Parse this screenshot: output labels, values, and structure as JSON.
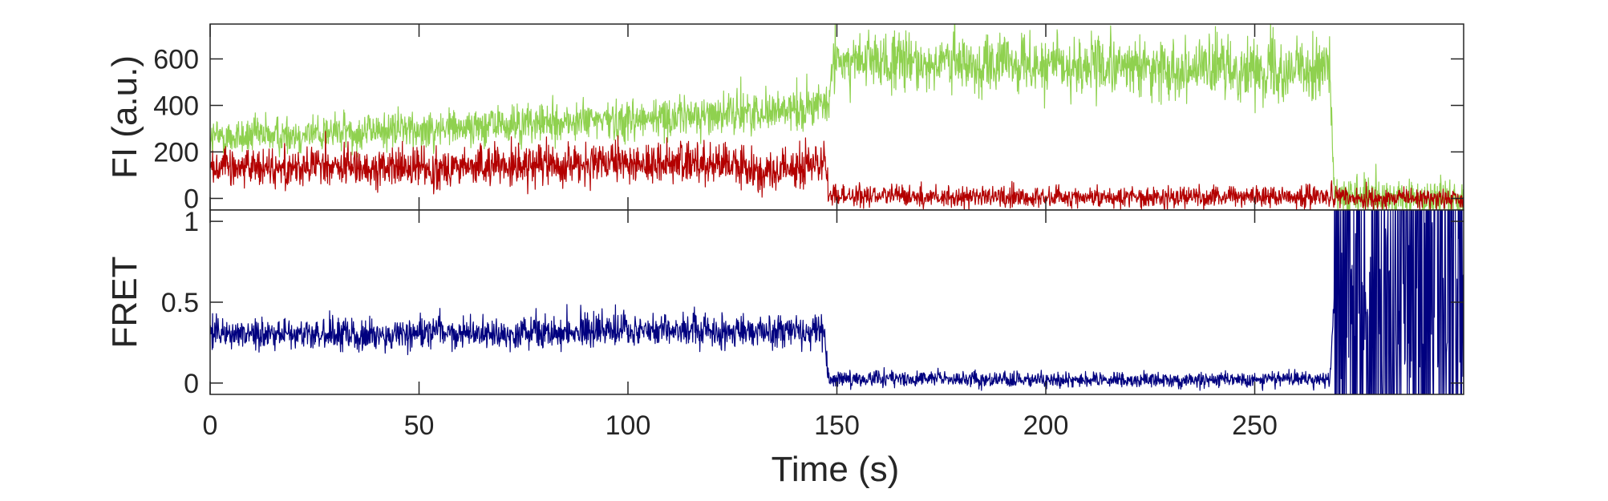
{
  "chart_data": [
    {
      "type": "line",
      "panel": "top",
      "ylabel": "FI (a.u.)",
      "xlim": [
        0,
        300
      ],
      "ylim": [
        -50,
        750
      ],
      "yticks": [
        0,
        200,
        400,
        600
      ],
      "xticks": [
        0,
        50,
        100,
        150,
        200,
        250
      ],
      "grid": false,
      "noise_amplitude_au": 90,
      "series": [
        {
          "color": "#8fd14f",
          "keypoints": [
            {
              "x": 0,
              "y": 260
            },
            {
              "x": 50,
              "y": 300
            },
            {
              "x": 100,
              "y": 340
            },
            {
              "x": 130,
              "y": 370
            },
            {
              "x": 148,
              "y": 400
            },
            {
              "x": 149,
              "y": 590
            },
            {
              "x": 200,
              "y": 570
            },
            {
              "x": 250,
              "y": 555
            },
            {
              "x": 268,
              "y": 560
            },
            {
              "x": 269,
              "y": 0
            },
            {
              "x": 300,
              "y": 0
            }
          ]
        },
        {
          "color": "#b30000",
          "keypoints": [
            {
              "x": 0,
              "y": 140
            },
            {
              "x": 50,
              "y": 130
            },
            {
              "x": 100,
              "y": 150
            },
            {
              "x": 125,
              "y": 150
            },
            {
              "x": 132,
              "y": 100
            },
            {
              "x": 147,
              "y": 160
            },
            {
              "x": 148,
              "y": 10
            },
            {
              "x": 200,
              "y": 5
            },
            {
              "x": 268,
              "y": 10
            },
            {
              "x": 269,
              "y": 0
            },
            {
              "x": 300,
              "y": 0
            }
          ]
        }
      ]
    },
    {
      "type": "line",
      "panel": "bottom",
      "ylabel": "FRET",
      "xlabel": "Time (s)",
      "xlim": [
        0,
        300
      ],
      "ylim": [
        -0.07,
        1.07
      ],
      "yticks": [
        0,
        0.5,
        1
      ],
      "ytick_labels": [
        "0",
        "0.5",
        "1"
      ],
      "xticks": [
        0,
        50,
        100,
        150,
        200,
        250
      ],
      "grid": false,
      "noise_amplitude": 0.11,
      "series": [
        {
          "color": "#00007f",
          "keypoints": [
            {
              "x": 0,
              "y": 0.3
            },
            {
              "x": 50,
              "y": 0.3
            },
            {
              "x": 100,
              "y": 0.33
            },
            {
              "x": 125,
              "y": 0.32
            },
            {
              "x": 147,
              "y": 0.32
            },
            {
              "x": 148,
              "y": 0.03
            },
            {
              "x": 200,
              "y": 0.02
            },
            {
              "x": 268,
              "y": 0.02
            },
            {
              "x": 269,
              "y": 0.5
            },
            {
              "x": 300,
              "y": 0.5
            }
          ],
          "after_269_oscillates_between": [
            -0.07,
            1.07
          ]
        }
      ]
    }
  ]
}
